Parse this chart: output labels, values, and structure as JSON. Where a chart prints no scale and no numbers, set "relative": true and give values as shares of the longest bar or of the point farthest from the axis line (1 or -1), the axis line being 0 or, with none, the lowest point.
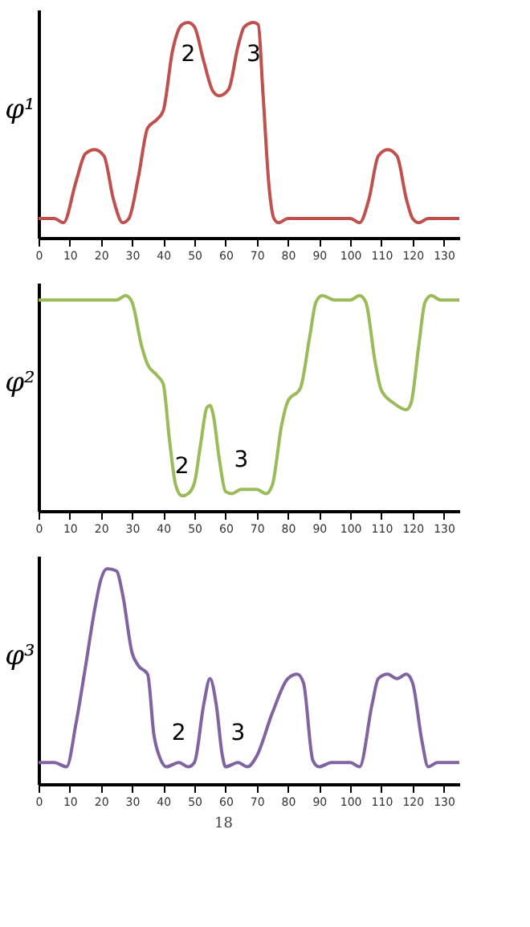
{
  "chart_data": [
    {
      "type": "line",
      "ylabel": "φ¹",
      "relative": true,
      "color": "#c0504d",
      "xlim": [
        0,
        135
      ],
      "xticks": [
        0,
        10,
        20,
        30,
        40,
        50,
        60,
        70,
        80,
        90,
        100,
        110,
        120,
        130
      ],
      "x": [
        0,
        5,
        8,
        12,
        15,
        18,
        21,
        24,
        27,
        29,
        32,
        35,
        38,
        40,
        43,
        46,
        48,
        50,
        53,
        56,
        58,
        61,
        64,
        66,
        69,
        70.5,
        72,
        74,
        75.5,
        77,
        80,
        100,
        103,
        106,
        109,
        112,
        115,
        118,
        120,
        122,
        125,
        135
      ],
      "values": [
        0.09,
        0.09,
        0.07,
        0.26,
        0.39,
        0.41,
        0.38,
        0.18,
        0.07,
        0.09,
        0.28,
        0.51,
        0.55,
        0.59,
        0.87,
        0.99,
        1,
        0.98,
        0.82,
        0.68,
        0.66,
        0.69,
        0.89,
        0.98,
        1,
        0.99,
        0.67,
        0.23,
        0.09,
        0.07,
        0.09,
        0.09,
        0.07,
        0.18,
        0.38,
        0.41,
        0.38,
        0.18,
        0.09,
        0.07,
        0.09,
        0.09
      ],
      "annotations": [
        {
          "text": "2",
          "x": 48,
          "y": 1
        },
        {
          "text": "3",
          "x": 69,
          "y": 1
        }
      ]
    },
    {
      "type": "line",
      "ylabel": "φ²",
      "relative": true,
      "color": "#9bbb59",
      "xlim": [
        0,
        135
      ],
      "xticks": [
        0,
        10,
        20,
        30,
        40,
        50,
        60,
        70,
        80,
        90,
        100,
        110,
        120,
        130
      ],
      "x": [
        0,
        25,
        28,
        30,
        33,
        35,
        38,
        40,
        42,
        44,
        46,
        48,
        50,
        52,
        54,
        55,
        56,
        58,
        60,
        62,
        65,
        70,
        73,
        75,
        78,
        80,
        84,
        87,
        89,
        91,
        95,
        100,
        103,
        105,
        108,
        110,
        114,
        118,
        119.5,
        122,
        124,
        126,
        129,
        135
      ],
      "values": [
        0.98,
        0.98,
        1.0,
        0.97,
        0.77,
        0.68,
        0.63,
        0.59,
        0.33,
        0.12,
        0.07,
        0.08,
        0.13,
        0.31,
        0.48,
        0.49,
        0.45,
        0.24,
        0.09,
        0.08,
        0.1,
        0.1,
        0.08,
        0.12,
        0.4,
        0.51,
        0.57,
        0.81,
        0.97,
        1.0,
        0.98,
        0.98,
        1.0,
        0.97,
        0.69,
        0.56,
        0.5,
        0.47,
        0.5,
        0.77,
        0.97,
        1.0,
        0.98,
        0.98
      ],
      "annotations": [
        {
          "text": "2",
          "x": 46,
          "y": 0.07
        },
        {
          "text": "3",
          "x": 65,
          "y": 0.1
        }
      ]
    },
    {
      "type": "line",
      "ylabel": "φ³",
      "relative": true,
      "color": "#8064a2",
      "xlim": [
        0,
        135
      ],
      "xticks": [
        0,
        10,
        20,
        30,
        40,
        50,
        60,
        70,
        80,
        90,
        100,
        110,
        120,
        130
      ],
      "x": [
        0,
        5,
        9,
        12,
        15,
        18,
        20,
        22,
        25,
        27,
        30,
        32,
        35,
        37,
        39,
        41,
        45,
        48,
        50,
        53,
        55,
        57,
        59,
        60,
        64,
        67,
        70,
        75,
        80,
        83,
        85,
        88,
        90,
        94,
        100,
        103,
        107,
        109,
        112,
        115,
        118,
        120,
        123,
        125,
        128,
        135
      ],
      "values": [
        0.1,
        0.1,
        0.08,
        0.28,
        0.54,
        0.81,
        0.95,
        1.0,
        0.99,
        0.88,
        0.61,
        0.55,
        0.51,
        0.23,
        0.12,
        0.08,
        0.1,
        0.08,
        0.1,
        0.37,
        0.49,
        0.37,
        0.13,
        0.08,
        0.1,
        0.08,
        0.13,
        0.33,
        0.49,
        0.51,
        0.47,
        0.11,
        0.08,
        0.1,
        0.1,
        0.08,
        0.37,
        0.49,
        0.51,
        0.49,
        0.51,
        0.47,
        0.2,
        0.08,
        0.1,
        0.1
      ],
      "annotations": [
        {
          "text": "2",
          "x": 45,
          "y": 0.1
        },
        {
          "text": "3",
          "x": 64,
          "y": 0.1
        },
        "18"
      ]
    }
  ]
}
